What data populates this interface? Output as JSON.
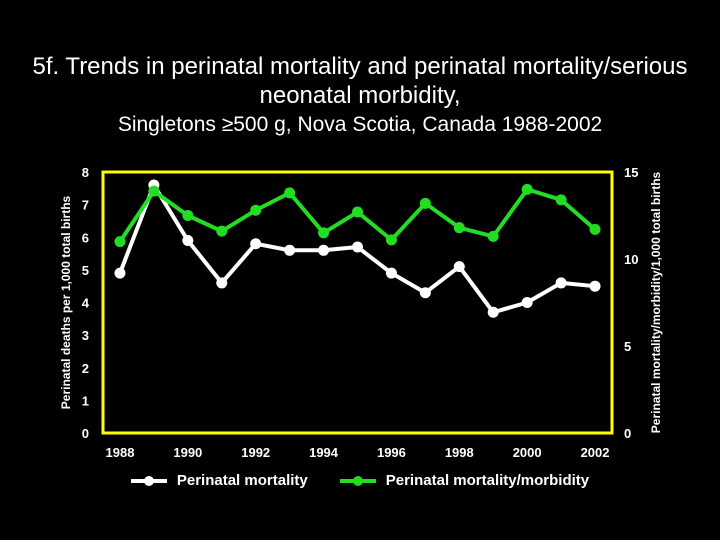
{
  "chart_data": {
    "type": "line",
    "title": "5f. Trends in perinatal mortality and perinatal mortality/serious neonatal morbidity,",
    "subtitle": "Singletons ≥500 g, Nova Scotia, Canada 1988-2002",
    "ylabel": "Perinatal deaths per 1,000 total births",
    "y2label": "Perinatal mortality/morbidity/1,000 total births",
    "xlim": [
      1987.5,
      2002.5
    ],
    "ylim": [
      0,
      8
    ],
    "y2lim": [
      0,
      15
    ],
    "x_ticks": [
      "1988",
      "1990",
      "1992",
      "1994",
      "1996",
      "1998",
      "2000",
      "2002"
    ],
    "y_ticks": [
      "0",
      "1",
      "2",
      "3",
      "4",
      "5",
      "6",
      "7",
      "8"
    ],
    "y2_ticks": [
      "0",
      "5",
      "10",
      "15"
    ],
    "x": [
      1988,
      1989,
      1990,
      1991,
      1992,
      1993,
      1994,
      1995,
      1996,
      1997,
      1998,
      1999,
      2000,
      2001,
      2002
    ],
    "series": [
      {
        "name": "Perinatal mortality",
        "axis": "left",
        "color": "#ffffff",
        "values": [
          4.9,
          7.6,
          5.9,
          4.6,
          5.8,
          5.6,
          5.6,
          5.7,
          4.9,
          4.3,
          5.1,
          3.7,
          4.0,
          4.6,
          4.5
        ]
      },
      {
        "name": "Perinatal mortality/morbidity",
        "axis": "right",
        "color": "#22dd22",
        "values": [
          11.0,
          13.9,
          12.5,
          11.6,
          12.8,
          13.8,
          11.5,
          12.7,
          11.1,
          13.2,
          11.8,
          11.3,
          14.0,
          13.4,
          11.7
        ]
      }
    ],
    "grid": false,
    "legend_position": "bottom"
  },
  "colors": {
    "axis": "#ffff00",
    "background": "#000000",
    "text": "#ffffff"
  }
}
